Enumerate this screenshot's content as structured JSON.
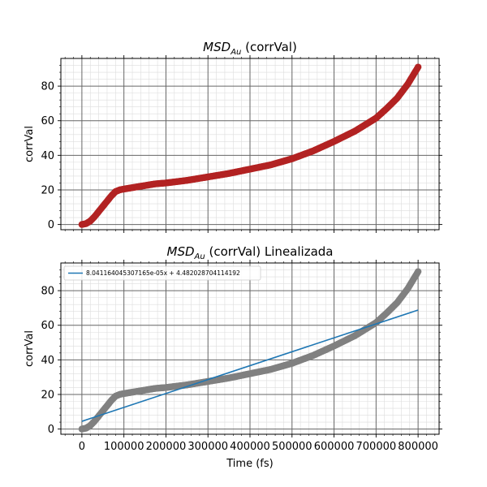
{
  "figure": {
    "background": "#ffffff",
    "grid_major_color": "#666666",
    "grid_minor_color": "#dddddd"
  },
  "chart_data": [
    {
      "type": "scatter",
      "title_main": "MSD",
      "title_sub": "Au",
      "title_rest": " (corrVal)",
      "xlabel": "",
      "ylabel": "corrVal",
      "xlim": [
        -50000,
        850000
      ],
      "ylim": [
        -3,
        96
      ],
      "grid": true,
      "marker_color": "#b22222",
      "y_ticks": [
        0,
        20,
        40,
        60,
        80
      ],
      "x_ticks": [
        0,
        100000,
        200000,
        300000,
        400000,
        500000,
        600000,
        700000,
        800000
      ],
      "x_tick_labels_shown": false,
      "series": [
        {
          "x": [
            0,
            10000,
            20000,
            30000,
            40000,
            50000,
            60000,
            70000,
            80000,
            90000,
            100000,
            125000,
            150000,
            175000,
            200000,
            250000,
            300000,
            350000,
            400000,
            450000,
            500000,
            550000,
            600000,
            650000,
            700000,
            725000,
            750000,
            775000,
            800000
          ],
          "y": [
            0,
            0.5,
            2,
            4.5,
            7.5,
            10.5,
            13.5,
            16.5,
            19,
            20,
            20.5,
            21.5,
            22.5,
            23.5,
            24,
            25.5,
            27.5,
            29.5,
            32,
            34.5,
            38,
            42.5,
            48,
            54,
            61.5,
            67,
            73,
            81,
            91
          ]
        }
      ]
    },
    {
      "type": "scatter",
      "title_main": "MSD",
      "title_sub": "Au",
      "title_rest": " (corrVal) Linealizada",
      "xlabel": "Time (fs)",
      "ylabel": "corrVal",
      "xlim": [
        -50000,
        850000
      ],
      "ylim": [
        -3,
        96
      ],
      "grid": true,
      "marker_color": "#808080",
      "line_color": "#1f77b4",
      "y_ticks": [
        0,
        20,
        40,
        60,
        80
      ],
      "x_ticks": [
        0,
        100000,
        200000,
        300000,
        400000,
        500000,
        600000,
        700000,
        800000
      ],
      "x_tick_labels": [
        "0",
        "100000",
        "200000",
        "300000",
        "400000",
        "500000",
        "600000",
        "700000",
        "800000"
      ],
      "x_tick_labels_shown": true,
      "legend_position": "upper-left",
      "series": [
        {
          "x": [
            0,
            10000,
            20000,
            30000,
            40000,
            50000,
            60000,
            70000,
            80000,
            90000,
            100000,
            125000,
            150000,
            175000,
            200000,
            250000,
            300000,
            350000,
            400000,
            450000,
            500000,
            550000,
            600000,
            650000,
            700000,
            725000,
            750000,
            775000,
            800000
          ],
          "y": [
            0,
            0.5,
            2,
            4.5,
            7.5,
            10.5,
            13.5,
            16.5,
            19,
            20,
            20.5,
            21.5,
            22.5,
            23.5,
            24,
            25.5,
            27.5,
            29.5,
            32,
            34.5,
            38,
            42.5,
            48,
            54,
            61.5,
            67,
            73,
            81,
            91
          ]
        }
      ],
      "fit": {
        "label": "8.041164045307165e-05x + 4.482028704114192",
        "slope": 8.041164045307165e-05,
        "intercept": 4.482028704114192,
        "x_range": [
          0,
          800000
        ]
      }
    }
  ]
}
